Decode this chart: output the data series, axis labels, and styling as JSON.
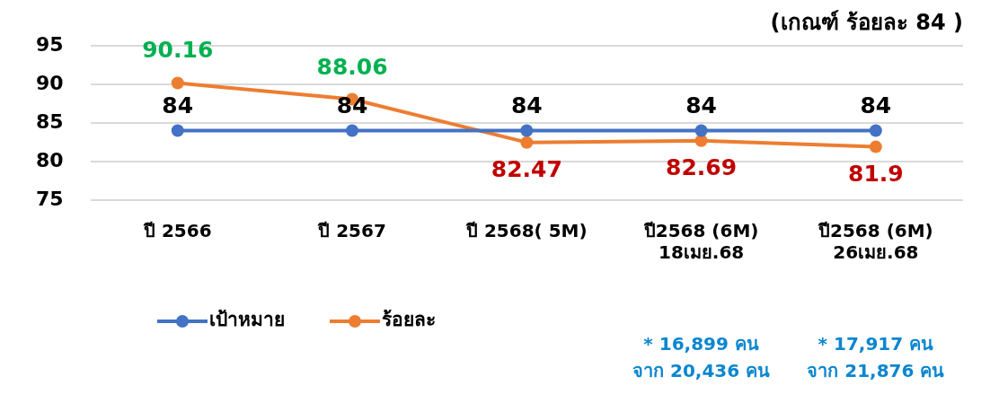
{
  "chart_data": {
    "type": "line",
    "title": "(เกณฑ์ ร้อยละ 84 )",
    "categories": [
      "ปี 2566",
      "ปี 2567",
      "ปี 2568( 5M)",
      "ปี2568 (6M)\n18เมย.68",
      "ปี2568 (6M)\n26เมย.68"
    ],
    "series": [
      {
        "name": "เป้าหมาย",
        "color": "#4472c4",
        "values": [
          84,
          84,
          84,
          84,
          84
        ]
      },
      {
        "name": "ร้อยละ",
        "color": "#ed7d31",
        "values": [
          90.16,
          88.06,
          82.47,
          82.69,
          81.9
        ]
      }
    ],
    "ylim": [
      75,
      95
    ],
    "yticks": [
      75,
      80,
      85,
      90,
      95
    ],
    "grid": "y",
    "legend": "bottom left",
    "marker": "circle",
    "data_labels": true,
    "annotations": [
      "* 16,899 คน\nจาก 20,436 คน",
      "* 17,917 คน\nจาก 21,876 คน"
    ]
  }
}
